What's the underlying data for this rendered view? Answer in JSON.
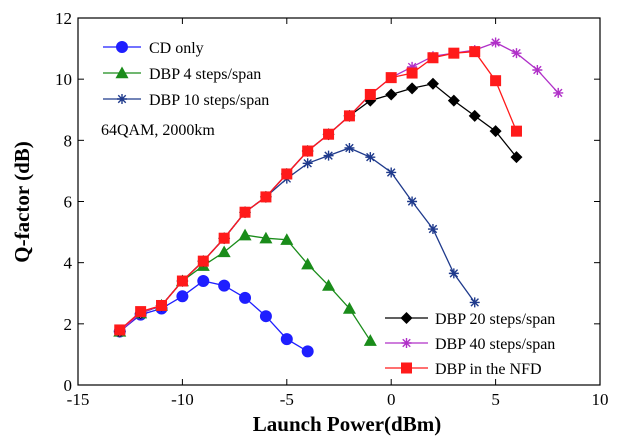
{
  "chart_data": {
    "type": "line",
    "title": "",
    "xlabel": "Launch Power(dBm)",
    "ylabel": "Q-factor (dB)",
    "xlim": [
      -15,
      10
    ],
    "ylim": [
      0,
      12
    ],
    "xticks": [
      -15,
      -10,
      -5,
      0,
      5,
      10
    ],
    "yticks": [
      0,
      2,
      4,
      6,
      8,
      10,
      12
    ],
    "grid": false,
    "annotation": "64QAM, 2000km",
    "legend_groups": [
      {
        "placement": "top-left",
        "series": [
          "CD only",
          "DBP 4 steps/span",
          "DBP 10 steps/span"
        ]
      },
      {
        "placement": "bottom-right",
        "series": [
          "DBP 20 steps/span",
          "DBP 40 steps/span",
          "DBP in the NFD"
        ]
      }
    ],
    "series": [
      {
        "name": "CD only",
        "color": "#1f1fff",
        "marker": "circle",
        "x": [
          -13,
          -12,
          -11,
          -10,
          -9,
          -8,
          -7,
          -6,
          -5,
          -4
        ],
        "y": [
          1.75,
          2.3,
          2.5,
          2.9,
          3.4,
          3.25,
          2.85,
          2.25,
          1.5,
          1.1
        ]
      },
      {
        "name": "DBP 4 steps/span",
        "color": "#1a8c1a",
        "marker": "triangle",
        "x": [
          -13,
          -12,
          -11,
          -10,
          -9,
          -8,
          -7,
          -6,
          -5,
          -4,
          -3,
          -2,
          -1
        ],
        "y": [
          1.75,
          2.35,
          2.6,
          3.4,
          3.9,
          4.35,
          4.9,
          4.8,
          4.75,
          3.95,
          3.25,
          2.5,
          1.45
        ]
      },
      {
        "name": "DBP 10 steps/span",
        "color": "#1f3a8c",
        "marker": "star",
        "x": [
          -13,
          -12,
          -11,
          -10,
          -9,
          -8,
          -7,
          -6,
          -5,
          -4,
          -3,
          -2,
          -1,
          0,
          1,
          2,
          3,
          4
        ],
        "y": [
          1.75,
          2.35,
          2.6,
          3.4,
          4.05,
          4.8,
          5.65,
          6.15,
          6.75,
          7.25,
          7.5,
          7.75,
          7.45,
          6.95,
          6.0,
          5.1,
          3.65,
          2.7
        ]
      },
      {
        "name": "DBP 20 steps/span",
        "color": "#000000",
        "marker": "diamond",
        "x": [
          -13,
          -12,
          -11,
          -10,
          -9,
          -8,
          -7,
          -6,
          -5,
          -4,
          -3,
          -2,
          -1,
          0,
          1,
          2,
          3,
          4,
          5,
          6
        ],
        "y": [
          1.75,
          2.35,
          2.6,
          3.4,
          4.05,
          4.8,
          5.65,
          6.15,
          6.9,
          7.65,
          8.2,
          8.8,
          9.3,
          9.5,
          9.7,
          9.85,
          9.3,
          8.8,
          8.3,
          7.45
        ]
      },
      {
        "name": "DBP 40 steps/span",
        "color": "#b030c8",
        "marker": "star",
        "x": [
          -13,
          -12,
          -11,
          -10,
          -9,
          -8,
          -7,
          -6,
          -5,
          -4,
          -3,
          -2,
          -1,
          0,
          1,
          2,
          3,
          4,
          5,
          6,
          7,
          8
        ],
        "y": [
          1.75,
          2.35,
          2.6,
          3.4,
          4.05,
          4.8,
          5.65,
          6.15,
          6.9,
          7.65,
          8.2,
          8.8,
          9.5,
          10.05,
          10.4,
          10.75,
          10.85,
          10.95,
          11.2,
          10.85,
          10.3,
          9.55
        ]
      },
      {
        "name": "DBP in the NFD",
        "color": "#ff1a1a",
        "marker": "square",
        "x": [
          -13,
          -12,
          -11,
          -10,
          -9,
          -8,
          -7,
          -6,
          -5,
          -4,
          -3,
          -2,
          -1,
          0,
          1,
          2,
          3,
          4,
          5,
          6
        ],
        "y": [
          1.8,
          2.4,
          2.6,
          3.4,
          4.05,
          4.8,
          5.65,
          6.15,
          6.9,
          7.65,
          8.2,
          8.8,
          9.5,
          10.05,
          10.2,
          10.7,
          10.85,
          10.9,
          9.95,
          8.3
        ]
      }
    ]
  }
}
